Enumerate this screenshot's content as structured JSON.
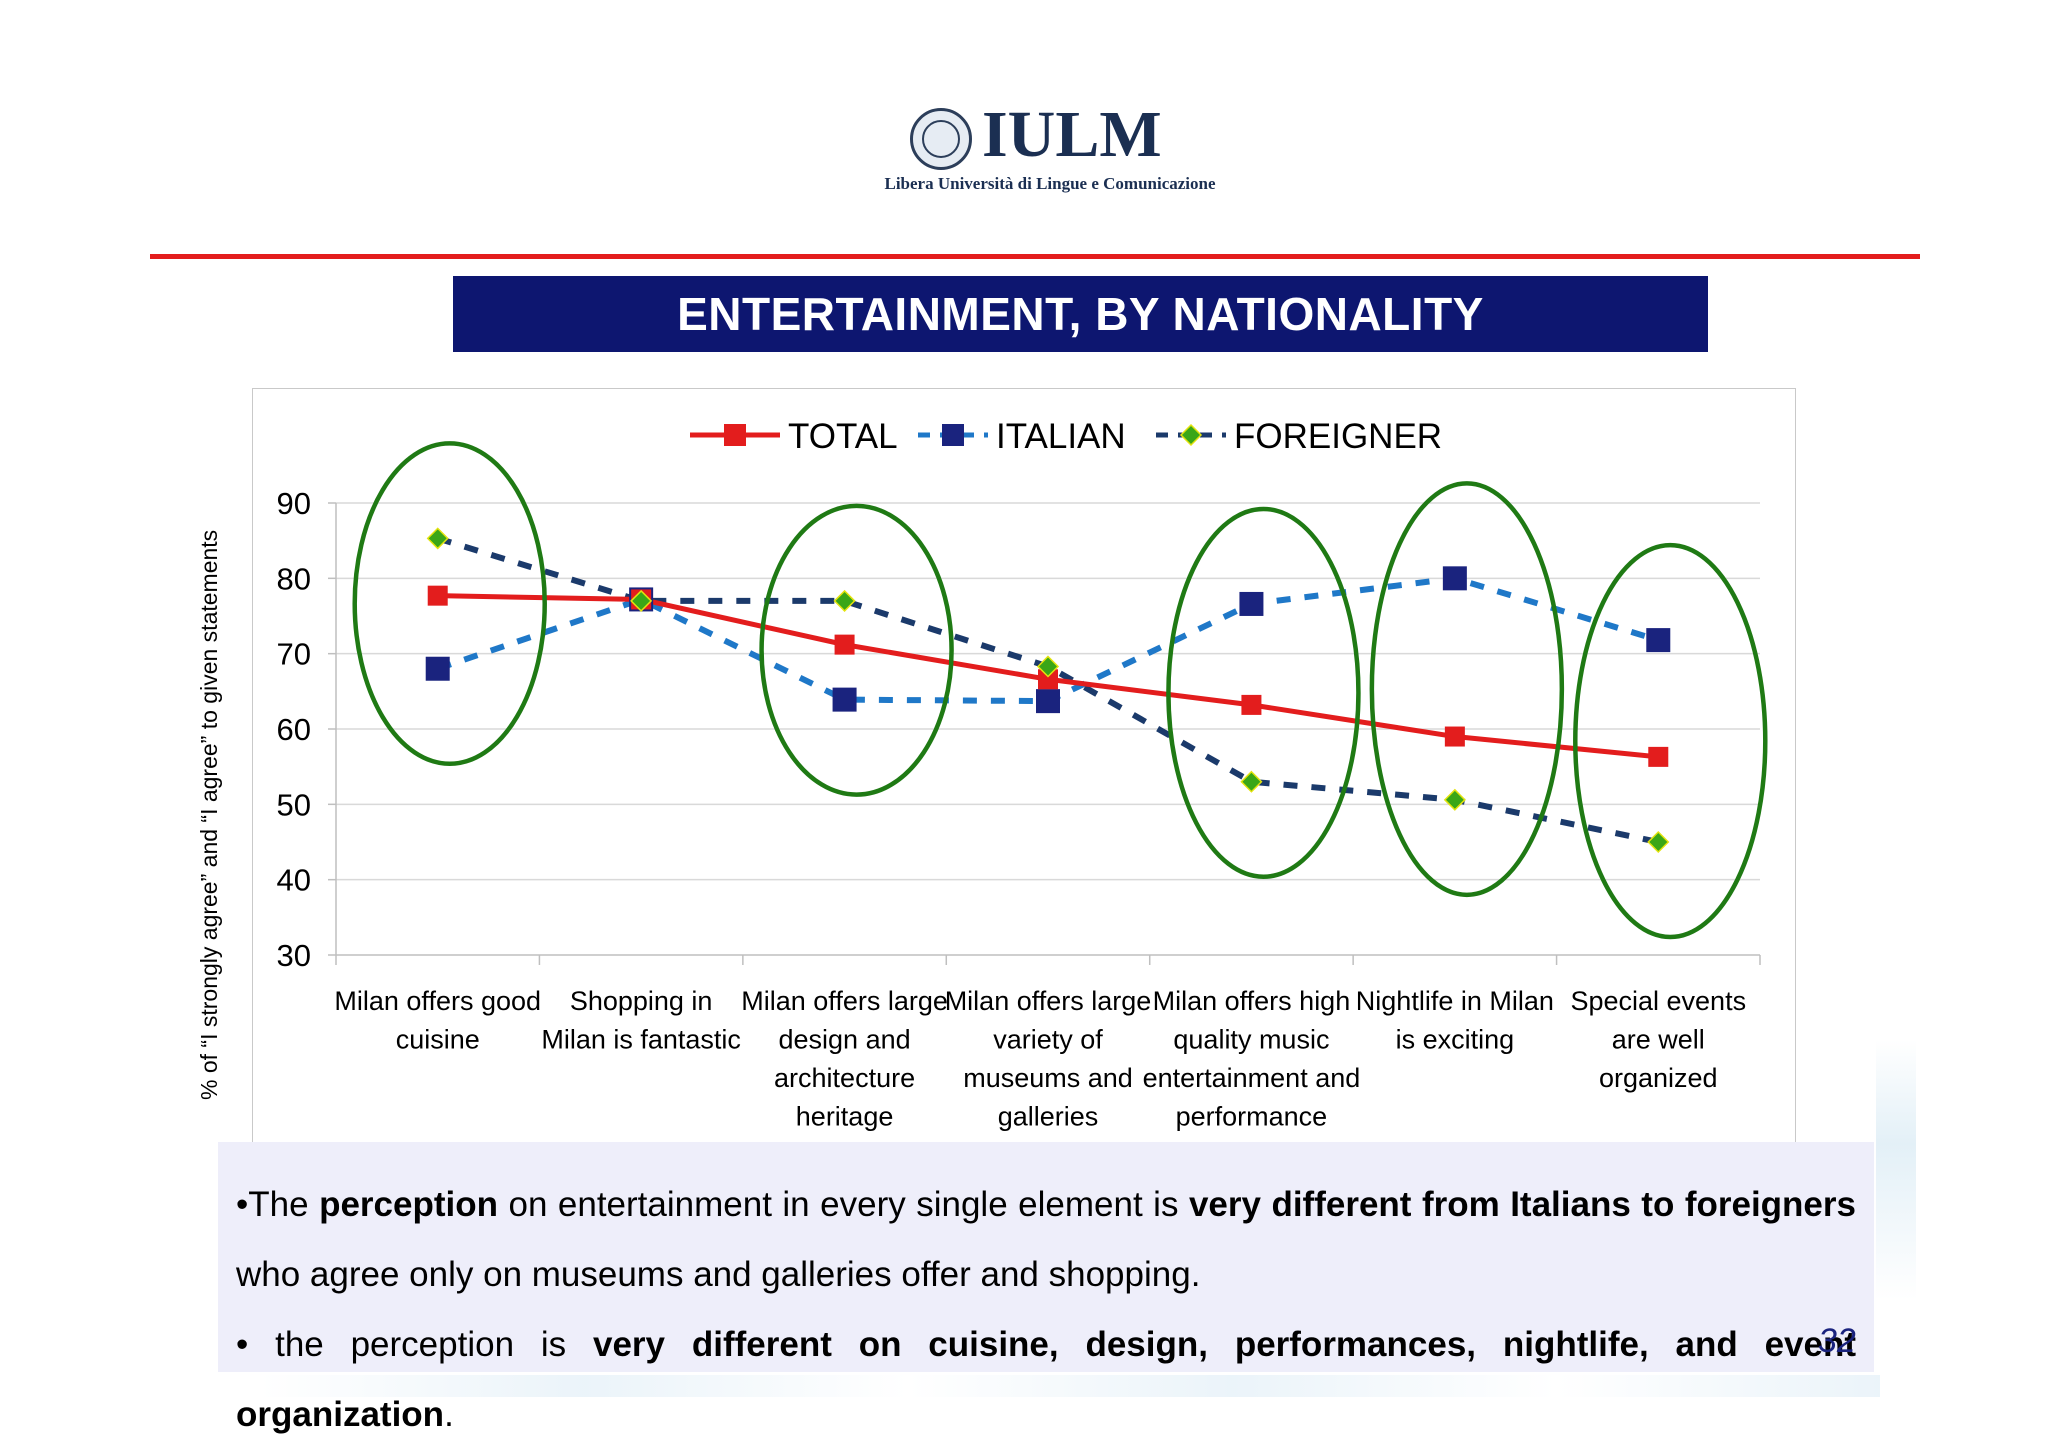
{
  "logo": {
    "name": "IULM",
    "subtitle": "Libera Università di Lingue e Comunicazione"
  },
  "title": "ENTERTAINMENT, BY NATIONALITY",
  "colors": {
    "accent_red": "#e31d1d",
    "title_bg": "#0d1670",
    "italian": "#1565c0",
    "foreigner": "#1b3a6b",
    "marker_green": "#3aa617",
    "circle_green": "#1f7a14"
  },
  "chart_data": {
    "type": "line",
    "ylabel": "% of “I strongly agree” and “I agree” to given statements",
    "ylim": [
      30,
      90
    ],
    "yticks": [
      30,
      40,
      50,
      60,
      70,
      80,
      90
    ],
    "grid": true,
    "legend_position": "top-center",
    "categories": [
      [
        "Milan offers good",
        "cuisine"
      ],
      [
        "Shopping in",
        "Milan is fantastic"
      ],
      [
        "Milan offers large",
        "design and",
        "architecture",
        "heritage"
      ],
      [
        "Milan offers large",
        "variety of",
        "museums and",
        "galleries"
      ],
      [
        "Milan offers high",
        "quality music",
        "entertainment and",
        "performance"
      ],
      [
        "Nightlife in Milan",
        "is exciting"
      ],
      [
        "Special events",
        "are well",
        "organized"
      ]
    ],
    "series": [
      {
        "name": "TOTAL",
        "values": [
          77.7,
          77.2,
          71.2,
          66.6,
          63.2,
          59.0,
          56.3
        ],
        "color": "#e31d1d",
        "style": "solid",
        "marker": "square"
      },
      {
        "name": "ITALIAN",
        "values": [
          68.0,
          77.2,
          63.9,
          63.7,
          76.6,
          80.0,
          71.8
        ],
        "color": "#1a237e",
        "line_color": "#1f78c8",
        "style": "dashed",
        "marker": "square"
      },
      {
        "name": "FOREIGNER",
        "values": [
          85.3,
          77.0,
          77.0,
          68.3,
          53.0,
          50.6,
          45.0
        ],
        "color": "#3aa617",
        "line_color": "#1b3a6b",
        "style": "dashed",
        "marker": "diamond"
      }
    ],
    "highlighted_categories": [
      0,
      2,
      4,
      5,
      6
    ]
  },
  "notes": {
    "p1_a": "•The ",
    "p1_b": "perception",
    "p1_c": " on entertainment in every single element is ",
    "p1_d": "very different from Italians to foreigners",
    "p1_e": " who agree only on museums and galleries offer and shopping.",
    "p2_a": "• the perception is ",
    "p2_b": "very different on cuisine, design, performances, nightlife, and event organization",
    "p2_c": "."
  },
  "page_number": "32"
}
